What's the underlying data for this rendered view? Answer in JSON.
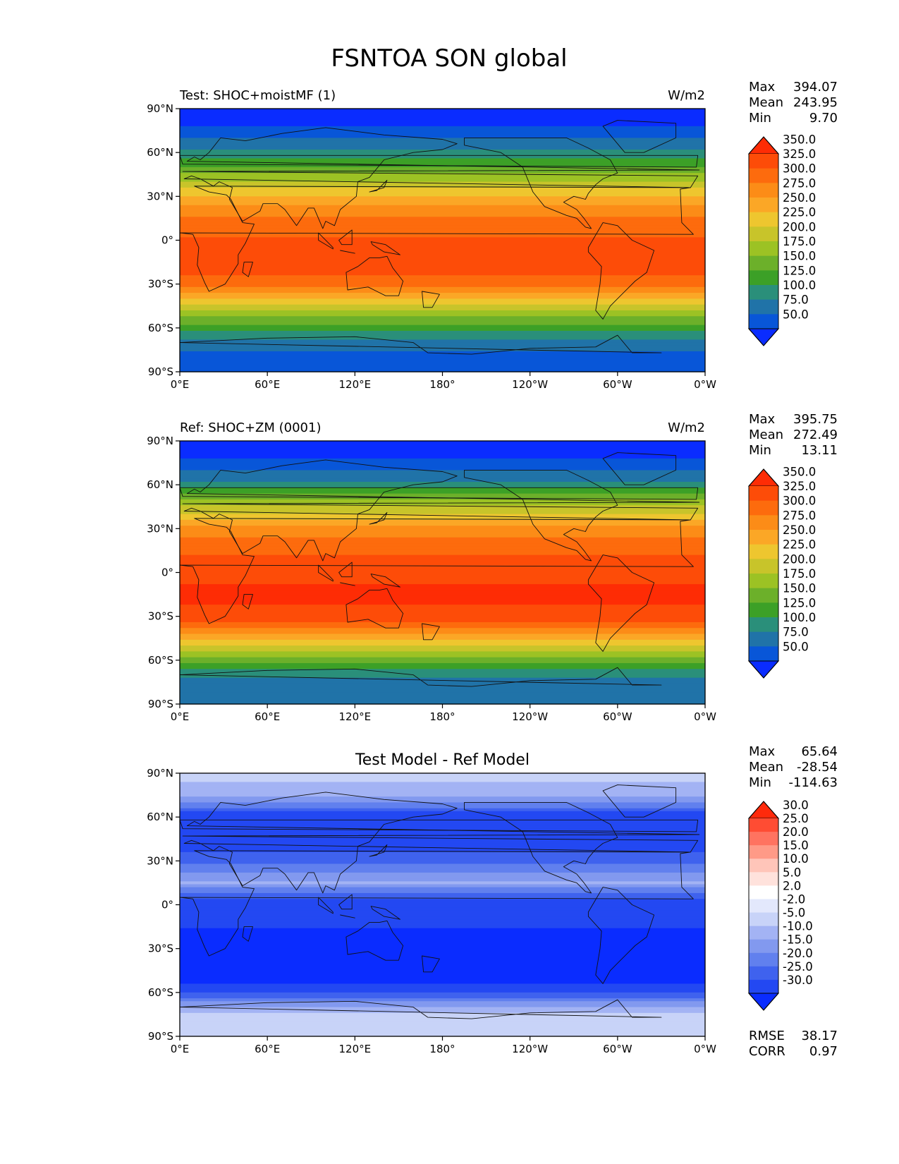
{
  "figure_title": "FSNTOA SON global",
  "colors": {
    "abs_levels": [
      "#0a2cff",
      "#0856d8",
      "#2073a8",
      "#2a8f7a",
      "#3ca027",
      "#6cb02a",
      "#9cc224",
      "#c8c42a",
      "#eec62f",
      "#fba726",
      "#fc8c17",
      "#fd6b0d",
      "#fd4c08",
      "#fe2c05"
    ],
    "diff_levels": [
      "#0a2cff",
      "#2348f2",
      "#3f62ee",
      "#6180ee",
      "#8299ef",
      "#a3b3f4",
      "#c8d3f8",
      "#e3e8fc",
      "#ffffff",
      "#ffe2dc",
      "#ffc5b9",
      "#ff9a87",
      "#ff7360",
      "#ff4c33",
      "#ff2a0c"
    ]
  },
  "panels": [
    {
      "title_left": "Test: SHOC+moistMF (1)",
      "title_center": "",
      "units": "W/m2",
      "stats": {
        "max_label": "Max",
        "max": "394.07",
        "mean_label": "Mean",
        "mean": "243.95",
        "min_label": "Min",
        "min": "9.70"
      },
      "colorbar_labels": [
        "50.0",
        "75.0",
        "100.0",
        "125.0",
        "150.0",
        "175.0",
        "200.0",
        "225.0",
        "250.0",
        "275.0",
        "300.0",
        "325.0",
        "350.0"
      ],
      "footer": null
    },
    {
      "title_left": "Ref: SHOC+ZM (0001)",
      "title_center": "",
      "units": "W/m2",
      "stats": {
        "max_label": "Max",
        "max": "395.75",
        "mean_label": "Mean",
        "mean": "272.49",
        "min_label": "Min",
        "min": "13.11"
      },
      "colorbar_labels": [
        "50.0",
        "75.0",
        "100.0",
        "125.0",
        "150.0",
        "175.0",
        "200.0",
        "225.0",
        "250.0",
        "275.0",
        "300.0",
        "325.0",
        "350.0"
      ],
      "footer": null
    },
    {
      "title_left": "",
      "title_center": "Test Model - Ref Model",
      "units": "",
      "stats": {
        "max_label": "Max",
        "max": "65.64",
        "mean_label": "Mean",
        "mean": "-28.54",
        "min_label": "Min",
        "min": "-114.63"
      },
      "colorbar_labels": [
        "-30.0",
        "-25.0",
        "-20.0",
        "-15.0",
        "-10.0",
        "-5.0",
        "-2.0",
        "2.0",
        "5.0",
        "10.0",
        "15.0",
        "20.0",
        "25.0",
        "30.0"
      ],
      "footer": {
        "rmse_label": "RMSE",
        "rmse": "38.17",
        "corr_label": "CORR",
        "corr": "0.97"
      }
    }
  ],
  "axes": {
    "lat_ticks": [
      "90°N",
      "60°N",
      "30°N",
      "0°",
      "30°S",
      "60°S",
      "90°S"
    ],
    "lon_ticks": [
      "0°E",
      "60°E",
      "120°E",
      "180°",
      "120°W",
      "60°W",
      "0°W"
    ]
  },
  "chart_data": [
    {
      "type": "heatmap",
      "title": "Test: SHOC+moistMF (1)",
      "units": "W/m2",
      "x": "longitude 0°E → 0°W",
      "y": "latitude 90°N → 90°S",
      "zonal_profile": {
        "lat": [
          90,
          75,
          60,
          45,
          30,
          15,
          0,
          -15,
          -30,
          -45,
          -60,
          -75,
          -90
        ],
        "value": [
          30,
          55,
          105,
          175,
          255,
          300,
          330,
          340,
          315,
          215,
          135,
          75,
          70
        ]
      },
      "levels": [
        50,
        75,
        100,
        125,
        150,
        175,
        200,
        225,
        250,
        275,
        300,
        325,
        350
      ],
      "stats": {
        "max": 394.07,
        "mean": 243.95,
        "min": 9.7
      }
    },
    {
      "type": "heatmap",
      "title": "Ref: SHOC+ZM (0001)",
      "units": "W/m2",
      "x": "longitude 0°E → 0°W",
      "y": "latitude 90°N → 90°S",
      "zonal_profile": {
        "lat": [
          90,
          75,
          60,
          45,
          30,
          15,
          0,
          -15,
          -30,
          -45,
          -60,
          -75,
          -90
        ],
        "value": [
          30,
          55,
          110,
          200,
          285,
          320,
          345,
          355,
          345,
          260,
          160,
          80,
          75
        ]
      },
      "levels": [
        50,
        75,
        100,
        125,
        150,
        175,
        200,
        225,
        250,
        275,
        300,
        325,
        350
      ],
      "stats": {
        "max": 395.75,
        "mean": 272.49,
        "min": 13.11
      }
    },
    {
      "type": "heatmap",
      "title": "Test Model - Ref Model",
      "x": "longitude 0°E → 0°W",
      "y": "latitude 90°N → 90°S",
      "zonal_profile": {
        "lat": [
          90,
          75,
          60,
          45,
          30,
          15,
          0,
          -15,
          -30,
          -45,
          -60,
          -75,
          -90
        ],
        "value": [
          -3,
          -8,
          -30,
          -30,
          -22,
          -10,
          -30,
          -30,
          -35,
          -40,
          -25,
          -3,
          -2
        ]
      },
      "levels": [
        -30,
        -25,
        -20,
        -15,
        -10,
        -5,
        -2,
        2,
        5,
        10,
        15,
        20,
        25,
        30
      ],
      "stats": {
        "max": 65.64,
        "mean": -28.54,
        "min": -114.63,
        "rmse": 38.17,
        "corr": 0.97
      }
    }
  ]
}
